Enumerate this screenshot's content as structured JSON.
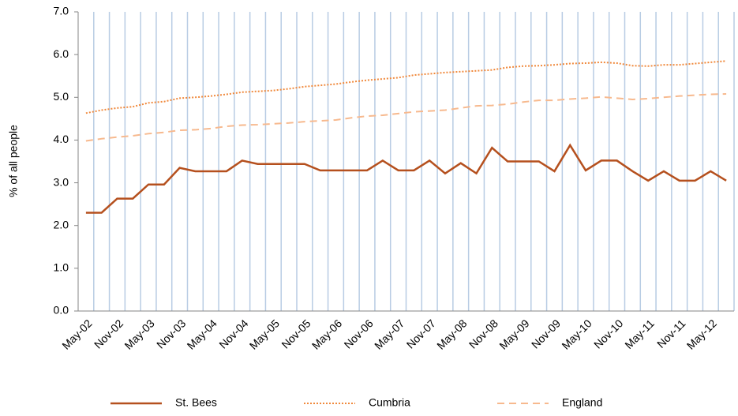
{
  "chart_data": {
    "type": "line",
    "y_label": "% of all people",
    "categories": [
      "May-02",
      null,
      "Nov-02",
      null,
      "May-03",
      null,
      "Nov-03",
      null,
      "May-04",
      null,
      "Nov-04",
      null,
      "May-05",
      null,
      "Nov-05",
      null,
      "May-06",
      null,
      "Nov-06",
      null,
      "May-07",
      null,
      "Nov-07",
      null,
      "May-08",
      null,
      "Nov-08",
      null,
      "May-09",
      null,
      "Nov-09",
      null,
      "May-10",
      null,
      "Nov-10",
      null,
      "May-11",
      null,
      "Nov-11",
      null,
      "May-12",
      null
    ],
    "series": [
      {
        "name": "St. Bees",
        "color": "#b5501e",
        "style": "solid",
        "values": [
          2.3,
          2.3,
          2.63,
          2.63,
          2.96,
          2.96,
          3.35,
          3.27,
          3.27,
          3.27,
          3.52,
          3.44,
          3.44,
          3.44,
          3.44,
          3.29,
          3.29,
          3.29,
          3.29,
          3.52,
          3.29,
          3.29,
          3.52,
          3.22,
          3.46,
          3.22,
          3.82,
          3.5,
          3.5,
          3.5,
          3.27,
          3.88,
          3.29,
          3.52,
          3.52,
          3.27,
          3.05,
          3.27,
          3.05,
          3.05,
          3.27,
          3.05
        ]
      },
      {
        "name": "Cumbria",
        "color": "#f0893c",
        "style": "dotted",
        "values": [
          4.63,
          4.7,
          4.75,
          4.78,
          4.87,
          4.9,
          4.98,
          5.0,
          5.03,
          5.07,
          5.12,
          5.14,
          5.16,
          5.2,
          5.25,
          5.28,
          5.31,
          5.36,
          5.4,
          5.43,
          5.46,
          5.52,
          5.55,
          5.58,
          5.6,
          5.62,
          5.64,
          5.7,
          5.73,
          5.74,
          5.76,
          5.79,
          5.8,
          5.82,
          5.8,
          5.74,
          5.73,
          5.76,
          5.76,
          5.79,
          5.82,
          5.85
        ]
      },
      {
        "name": "England",
        "color": "#f7b98e",
        "style": "dashed",
        "values": [
          3.98,
          4.03,
          4.07,
          4.1,
          4.15,
          4.18,
          4.23,
          4.24,
          4.27,
          4.32,
          4.35,
          4.36,
          4.38,
          4.4,
          4.43,
          4.45,
          4.47,
          4.52,
          4.56,
          4.58,
          4.62,
          4.66,
          4.68,
          4.7,
          4.75,
          4.8,
          4.81,
          4.84,
          4.89,
          4.93,
          4.93,
          4.96,
          4.98,
          5.01,
          4.98,
          4.95,
          4.97,
          5.0,
          5.03,
          5.05,
          5.07,
          5.08
        ]
      }
    ],
    "ylim": [
      0,
      7
    ],
    "yticks": [
      {
        "value": 0,
        "label": "0.0"
      },
      {
        "value": 1,
        "label": "1.0"
      },
      {
        "value": 2,
        "label": "2.0"
      },
      {
        "value": 3,
        "label": "3.0"
      },
      {
        "value": 4,
        "label": "4.0"
      },
      {
        "value": 5,
        "label": "5.0"
      },
      {
        "value": 6,
        "label": "6.0"
      },
      {
        "value": 7,
        "label": "7.0"
      }
    ],
    "grid": "vertical",
    "grid_color": "#b8cce4",
    "legend": "bottom"
  }
}
